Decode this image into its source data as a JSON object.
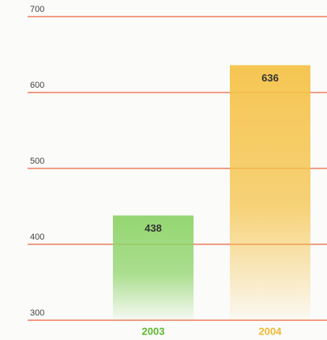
{
  "chart_data": {
    "type": "bar",
    "categories": [
      "2003",
      "2004"
    ],
    "values": [
      438,
      636
    ],
    "colors": [
      "#8fd46a",
      "#f5c34a"
    ],
    "label_colors": [
      "#5cb82e",
      "#f0b830"
    ],
    "ylim": [
      300,
      700
    ],
    "yticks": [
      300,
      400,
      500,
      600,
      700
    ],
    "grid": true,
    "grid_color": "#e9643f"
  }
}
